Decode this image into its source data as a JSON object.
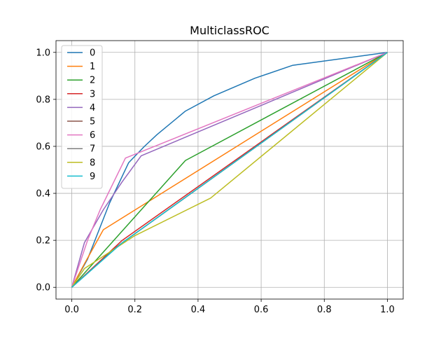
{
  "chart_data": {
    "type": "line",
    "title": "MulticlassROC",
    "xlabel": "",
    "ylabel": "",
    "xlim": [
      -0.05,
      1.05
    ],
    "ylim": [
      -0.05,
      1.05
    ],
    "grid": true,
    "legend_position": "top-left",
    "xticks": [
      "0.0",
      "0.2",
      "0.4",
      "0.6",
      "0.8",
      "1.0"
    ],
    "yticks": [
      "0.0",
      "0.2",
      "0.4",
      "0.6",
      "0.8",
      "1.0"
    ],
    "series": [
      {
        "name": "0",
        "color": "#1f77b4",
        "points": [
          [
            0,
            0
          ],
          [
            0.05,
            0.12
          ],
          [
            0.12,
            0.36
          ],
          [
            0.18,
            0.53
          ],
          [
            0.23,
            0.6
          ],
          [
            0.27,
            0.65
          ],
          [
            0.36,
            0.75
          ],
          [
            0.45,
            0.815
          ],
          [
            0.58,
            0.89
          ],
          [
            0.7,
            0.945
          ],
          [
            1,
            1
          ]
        ]
      },
      {
        "name": "1",
        "color": "#ff7f0e",
        "points": [
          [
            0,
            0
          ],
          [
            0.04,
            0.1
          ],
          [
            0.1,
            0.245
          ],
          [
            1,
            1
          ]
        ]
      },
      {
        "name": "2",
        "color": "#2ca02c",
        "points": [
          [
            0,
            0
          ],
          [
            0.36,
            0.54
          ],
          [
            1,
            1
          ]
        ]
      },
      {
        "name": "3",
        "color": "#d62728",
        "points": [
          [
            0,
            0
          ],
          [
            0.16,
            0.2
          ],
          [
            1,
            1
          ]
        ]
      },
      {
        "name": "4",
        "color": "#9467bd",
        "points": [
          [
            0,
            0
          ],
          [
            0.04,
            0.19
          ],
          [
            0.1,
            0.33
          ],
          [
            0.16,
            0.45
          ],
          [
            0.22,
            0.56
          ],
          [
            1,
            1
          ]
        ]
      },
      {
        "name": "5",
        "color": "#8c564b",
        "points": [
          [
            0,
            0
          ],
          [
            0.14,
            0.17
          ],
          [
            1,
            1
          ]
        ]
      },
      {
        "name": "6",
        "color": "#e377c2",
        "points": [
          [
            0,
            0
          ],
          [
            0.05,
            0.2
          ],
          [
            0.09,
            0.33
          ],
          [
            0.17,
            0.55
          ],
          [
            1,
            1
          ]
        ]
      },
      {
        "name": "7",
        "color": "#7f7f7f",
        "points": [
          [
            0,
            0
          ],
          [
            0.15,
            0.18
          ],
          [
            1,
            1
          ]
        ]
      },
      {
        "name": "8",
        "color": "#bcbd22",
        "points": [
          [
            0,
            0
          ],
          [
            0.04,
            0.08
          ],
          [
            0.2,
            0.22
          ],
          [
            0.44,
            0.38
          ],
          [
            1,
            1
          ]
        ]
      },
      {
        "name": "9",
        "color": "#17becf",
        "points": [
          [
            0,
            0
          ],
          [
            0.16,
            0.19
          ],
          [
            1,
            1
          ]
        ]
      }
    ]
  }
}
